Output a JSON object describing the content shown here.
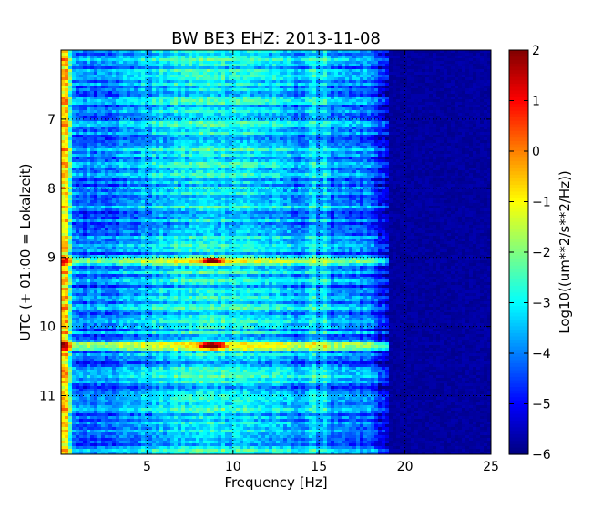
{
  "chart_data": {
    "type": "heatmap",
    "title": "BW BE3 EHZ: 2013-11-08",
    "xlabel": "Frequency [Hz]",
    "ylabel": "UTC (+ 01:00 = Lokalzeit)",
    "xlim": [
      0,
      25
    ],
    "ylim": [
      6.0,
      11.85
    ],
    "y_inverted": true,
    "x_ticks": [
      5,
      10,
      15,
      20,
      25
    ],
    "x_tick_labels": [
      "5",
      "10",
      "15",
      "20",
      "25"
    ],
    "y_ticks": [
      7,
      8,
      9,
      10,
      11
    ],
    "y_tick_labels": [
      "7",
      "8",
      "9",
      "10",
      "11"
    ],
    "grid": true,
    "colormap": "jet",
    "colorbar": {
      "label": "Log10((um**2/s**2/Hz))",
      "range": [
        -6,
        2
      ],
      "ticks": [
        2,
        1,
        0,
        -1,
        -2,
        -3,
        -4,
        -5,
        -6
      ],
      "tick_labels": [
        "2",
        "1",
        "0",
        "−1",
        "−2",
        "−3",
        "−4",
        "−5",
        "−6"
      ]
    },
    "features": {
      "noise_floor_above_hz": 19,
      "background_level": -4.2,
      "low_frequency_peak": {
        "hz": 0.2,
        "level": -0.5
      },
      "vertical_lines_hz": [
        14.7,
        15.3
      ],
      "horizontal_events": [
        {
          "utc": 9.05,
          "level": -1.5
        },
        {
          "utc": 10.28,
          "level": -1.0
        }
      ],
      "hot_spots": [
        {
          "hz": 8.8,
          "utc": 10.28,
          "level": 1.0
        },
        {
          "hz": 8.8,
          "utc": 9.05,
          "level": 0.6
        }
      ]
    }
  }
}
